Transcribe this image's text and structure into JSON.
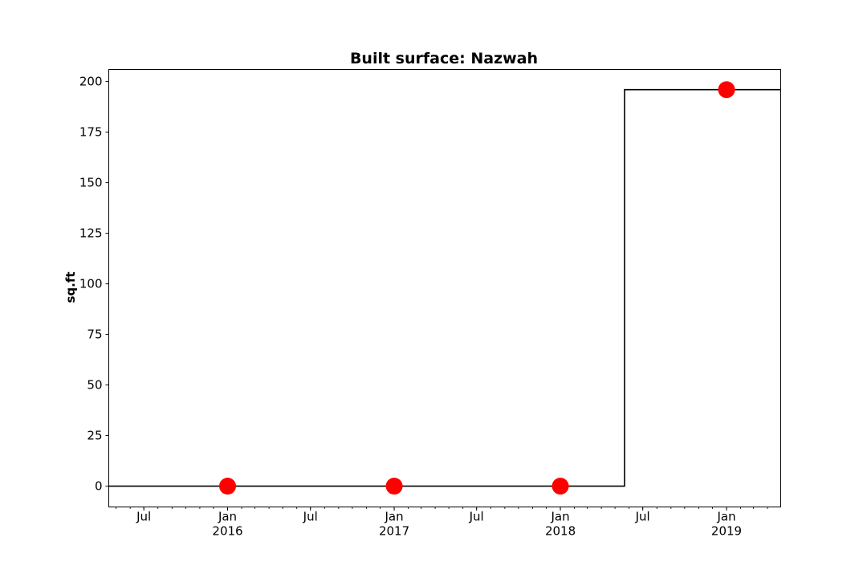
{
  "chart_data": {
    "type": "line",
    "title": "Built surface: Nazwah",
    "xlabel": "",
    "ylabel": "sq.ft",
    "xlim": [
      "2015-04-15",
      "2019-04-30"
    ],
    "ylim": [
      -10.3,
      206
    ],
    "y_ticks": [
      0,
      25,
      50,
      75,
      100,
      125,
      150,
      175,
      200
    ],
    "x_ticks": [
      {
        "date": "2015-07-01",
        "label": "Jul",
        "sublabel": ""
      },
      {
        "date": "2016-01-01",
        "label": "Jan",
        "sublabel": "2016"
      },
      {
        "date": "2016-07-01",
        "label": "Jul",
        "sublabel": ""
      },
      {
        "date": "2017-01-01",
        "label": "Jan",
        "sublabel": "2017"
      },
      {
        "date": "2017-07-01",
        "label": "Jul",
        "sublabel": ""
      },
      {
        "date": "2018-01-01",
        "label": "Jan",
        "sublabel": "2018"
      },
      {
        "date": "2018-07-01",
        "label": "Jul",
        "sublabel": ""
      },
      {
        "date": "2019-01-01",
        "label": "Jan",
        "sublabel": "2019"
      }
    ],
    "series": [
      {
        "style": "step",
        "color": "#000000",
        "points": [
          {
            "x": "2015-04-15",
            "y": 0
          },
          {
            "x": "2018-05-22",
            "y": 0
          },
          {
            "x": "2018-05-22",
            "y": 196
          },
          {
            "x": "2019-04-30",
            "y": 196
          }
        ]
      },
      {
        "style": "markers",
        "color": "#ff0000",
        "points": [
          {
            "x": "2016-01-01",
            "y": 0
          },
          {
            "x": "2017-01-01",
            "y": 0
          },
          {
            "x": "2018-01-01",
            "y": 0
          },
          {
            "x": "2019-01-01",
            "y": 196
          }
        ]
      }
    ],
    "grid": false,
    "legend": "none"
  }
}
